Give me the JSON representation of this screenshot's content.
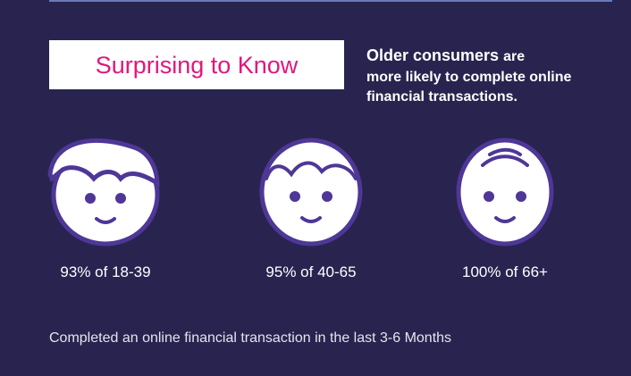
{
  "header": {
    "badge": "Surprising to Know",
    "lead_bold": "Older consumers",
    "lead_lines": [
      "are",
      "more likely to complete online",
      "financial transactions."
    ]
  },
  "groups": [
    {
      "label": "93% of 18-39"
    },
    {
      "label": "95% of 40-65"
    },
    {
      "label": "100% of 66+"
    }
  ],
  "footnote": "Completed an online financial transaction in the last 3-6 Months"
}
